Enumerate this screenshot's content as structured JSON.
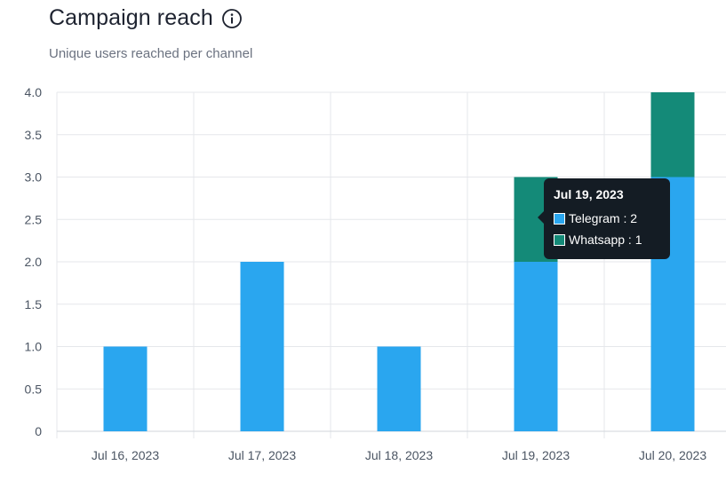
{
  "header": {
    "title": "Campaign reach",
    "subtitle": "Unique users reached per channel",
    "info_icon": "info-circle-icon"
  },
  "colors": {
    "telegram": "#2aa6ef",
    "whatsapp": "#148a78",
    "grid": "#e5e7eb"
  },
  "chart_data": {
    "type": "bar",
    "stacked": true,
    "categories": [
      "Jul 16, 2023",
      "Jul 17, 2023",
      "Jul 18, 2023",
      "Jul 19, 2023",
      "Jul 20, 2023"
    ],
    "series": [
      {
        "name": "Telegram",
        "values": [
          1,
          2,
          1,
          2,
          3
        ]
      },
      {
        "name": "Whatsapp",
        "values": [
          0,
          0,
          0,
          1,
          1
        ]
      }
    ],
    "title": "Campaign reach",
    "subtitle": "Unique users reached per channel",
    "xlabel": "",
    "ylabel": "",
    "ylim": [
      0,
      4
    ],
    "yticks": [
      "0",
      "0.5",
      "1.0",
      "1.5",
      "2.0",
      "2.5",
      "3.0",
      "3.5",
      "4.0"
    ],
    "grid": true,
    "legend": "none"
  },
  "tooltip": {
    "title": "Jul 19, 2023",
    "rows": [
      {
        "label": "Telegram : 2"
      },
      {
        "label": "Whatsapp : 1"
      }
    ]
  }
}
